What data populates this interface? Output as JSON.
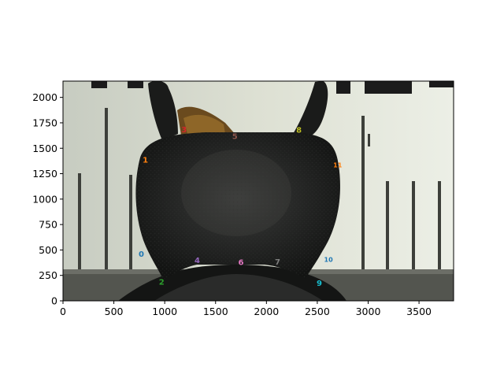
{
  "chart_data": {
    "type": "scatter",
    "title": "",
    "xlabel": "",
    "ylabel": "",
    "xlim": [
      0,
      3840
    ],
    "ylim": [
      0,
      2160
    ],
    "xticks": [
      0,
      500,
      1000,
      1500,
      2000,
      2500,
      3000,
      3500
    ],
    "yticks": [
      0,
      250,
      500,
      750,
      1000,
      1250,
      1500,
      1750,
      2000
    ],
    "background": "photograph of a beetle pronotum over a ruler scale",
    "annotations": [
      {
        "label": "0",
        "x": 770,
        "y": 460,
        "color": "#1f77b4"
      },
      {
        "label": "1",
        "x": 810,
        "y": 1385,
        "color": "#ff7f0e"
      },
      {
        "label": "2",
        "x": 970,
        "y": 185,
        "color": "#2ca02c"
      },
      {
        "label": "3",
        "x": 1190,
        "y": 1685,
        "color": "#d62728"
      },
      {
        "label": "4",
        "x": 1320,
        "y": 400,
        "color": "#9467bd"
      },
      {
        "label": "5",
        "x": 1690,
        "y": 1620,
        "color": "#8c564b"
      },
      {
        "label": "6",
        "x": 1750,
        "y": 380,
        "color": "#e377c2"
      },
      {
        "label": "7",
        "x": 2110,
        "y": 385,
        "color": "#7f7f7f"
      },
      {
        "label": "8",
        "x": 2320,
        "y": 1680,
        "color": "#bcbd22"
      },
      {
        "label": "9",
        "x": 2520,
        "y": 175,
        "color": "#17becf"
      },
      {
        "label": "10",
        "x": 2610,
        "y": 405,
        "color": "#1f77b4"
      },
      {
        "label": "11",
        "x": 2700,
        "y": 1335,
        "color": "#ff7f0e"
      }
    ]
  }
}
